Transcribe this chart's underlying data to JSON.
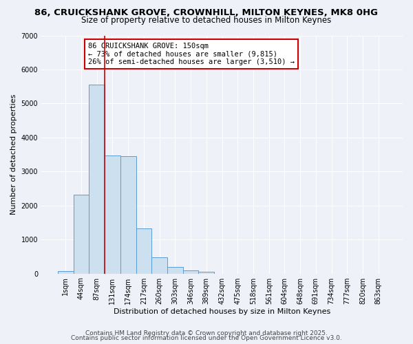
{
  "title1": "86, CRUICKSHANK GROVE, CROWNHILL, MILTON KEYNES, MK8 0HG",
  "title2": "Size of property relative to detached houses in Milton Keynes",
  "xlabel": "Distribution of detached houses by size in Milton Keynes",
  "ylabel": "Number of detached properties",
  "categories": [
    "1sqm",
    "44sqm",
    "87sqm",
    "131sqm",
    "174sqm",
    "217sqm",
    "260sqm",
    "303sqm",
    "346sqm",
    "389sqm",
    "432sqm",
    "475sqm",
    "518sqm",
    "561sqm",
    "604sqm",
    "648sqm",
    "691sqm",
    "734sqm",
    "777sqm",
    "820sqm",
    "863sqm"
  ],
  "values": [
    70,
    2320,
    5560,
    3470,
    3460,
    1330,
    480,
    200,
    90,
    50,
    0,
    0,
    0,
    0,
    0,
    0,
    0,
    0,
    0,
    0,
    0
  ],
  "bar_color": "#cce0f0",
  "bar_edge_color": "#5b9bd5",
  "reference_line_x": 2.5,
  "reference_line_color": "#cc0000",
  "annotation_text": "86 CRUICKSHANK GROVE: 150sqm\n← 73% of detached houses are smaller (9,815)\n26% of semi-detached houses are larger (3,510) →",
  "annotation_box_color": "#ffffff",
  "annotation_box_edge": "#cc0000",
  "ylim": [
    0,
    7000
  ],
  "yticks": [
    0,
    1000,
    2000,
    3000,
    4000,
    5000,
    6000,
    7000
  ],
  "footer1": "Contains HM Land Registry data © Crown copyright and database right 2025.",
  "footer2": "Contains public sector information licensed under the Open Government Licence v3.0.",
  "background_color": "#eef2f8",
  "grid_color": "#ffffff",
  "title_fontsize": 9.5,
  "subtitle_fontsize": 8.5,
  "axis_label_fontsize": 8,
  "tick_fontsize": 7,
  "annotation_fontsize": 7.5,
  "footer_fontsize": 6.5
}
